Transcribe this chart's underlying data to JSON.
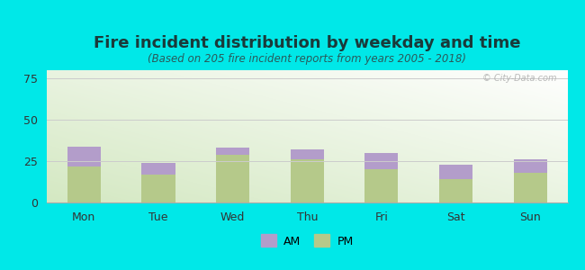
{
  "title": "Fire incident distribution by weekday and time",
  "subtitle": "(Based on 205 fire incident reports from years 2005 - 2018)",
  "categories": [
    "Mon",
    "Tue",
    "Wed",
    "Thu",
    "Fri",
    "Sat",
    "Sun"
  ],
  "pm_values": [
    22,
    17,
    29,
    26,
    20,
    14,
    18
  ],
  "am_values": [
    12,
    7,
    4,
    6,
    10,
    9,
    8
  ],
  "pm_color": "#b5c98a",
  "am_color": "#b39dca",
  "background_color": "#00e8e8",
  "ylim": [
    0,
    80
  ],
  "yticks": [
    0,
    25,
    50,
    75
  ],
  "title_fontsize": 13,
  "subtitle_fontsize": 8.5,
  "watermark": "© City-Data.com",
  "bar_width": 0.45,
  "grid_color": "#cccccc",
  "title_color": "#1a3a3a",
  "subtitle_color": "#2a5a5a"
}
